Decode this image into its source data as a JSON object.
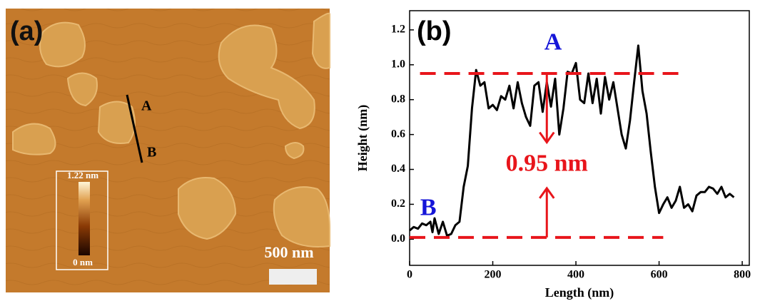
{
  "image": {
    "panel_label": "(a)",
    "line_labels": [
      "A",
      "B"
    ],
    "colorbar": {
      "max_label": "1.22 nm",
      "min_label": "0 nm"
    },
    "scale_bar": "500 nm"
  },
  "chart_data": {
    "type": "line",
    "panel_label": "(b)",
    "x_label": "Length (nm)",
    "y_label": "Height (nm)",
    "color": "#000000",
    "x": [
      0,
      10,
      20,
      30,
      40,
      50,
      55,
      60,
      70,
      80,
      90,
      100,
      110,
      120,
      130,
      140,
      150,
      160,
      170,
      180,
      190,
      200,
      210,
      220,
      230,
      240,
      250,
      260,
      270,
      280,
      290,
      300,
      310,
      320,
      330,
      340,
      350,
      360,
      370,
      380,
      390,
      400,
      410,
      420,
      430,
      440,
      450,
      460,
      470,
      480,
      490,
      500,
      510,
      520,
      530,
      540,
      550,
      560,
      570,
      580,
      590,
      600,
      610,
      620,
      630,
      640,
      650,
      660,
      670,
      680,
      690,
      700,
      710,
      720,
      730,
      740,
      750,
      760,
      770,
      780
    ],
    "values": [
      0.05,
      0.07,
      0.06,
      0.09,
      0.08,
      0.1,
      0.04,
      0.12,
      0.03,
      0.1,
      0.02,
      0.03,
      0.08,
      0.1,
      0.3,
      0.42,
      0.75,
      0.97,
      0.88,
      0.9,
      0.75,
      0.77,
      0.74,
      0.82,
      0.8,
      0.88,
      0.75,
      0.9,
      0.78,
      0.7,
      0.65,
      0.88,
      0.9,
      0.73,
      0.9,
      0.76,
      0.92,
      0.6,
      0.75,
      0.96,
      0.95,
      1.01,
      0.8,
      0.78,
      0.95,
      0.78,
      0.92,
      0.72,
      0.93,
      0.8,
      0.9,
      0.75,
      0.6,
      0.52,
      0.68,
      0.9,
      1.11,
      0.85,
      0.72,
      0.5,
      0.3,
      0.15,
      0.2,
      0.24,
      0.18,
      0.22,
      0.3,
      0.18,
      0.2,
      0.16,
      0.25,
      0.27,
      0.27,
      0.3,
      0.29,
      0.26,
      0.3,
      0.24,
      0.26,
      0.24
    ],
    "xlim": [
      0,
      817
    ],
    "ylim": [
      -0.15,
      1.31
    ],
    "xticks": [
      0,
      200,
      400,
      600,
      800
    ],
    "yticks": [
      {
        "value": 0,
        "label": "0.0"
      },
      0.2,
      0.4,
      0.6,
      0.8,
      {
        "value": 1,
        "label": "1.0"
      },
      1.2
    ],
    "reference_lines": [
      {
        "y": 0.95,
        "x": [
          25,
          660
        ],
        "color": "#e8151b"
      },
      {
        "y": 0.01,
        "x": [
          0,
          610
        ],
        "color": "#e8151b"
      }
    ],
    "annotations": [
      {
        "text": "A",
        "color": "#1515d8"
      },
      {
        "text": "B",
        "color": "#1515d8"
      },
      {
        "text": "0.95 nm",
        "color": "#e8151b"
      }
    ]
  }
}
